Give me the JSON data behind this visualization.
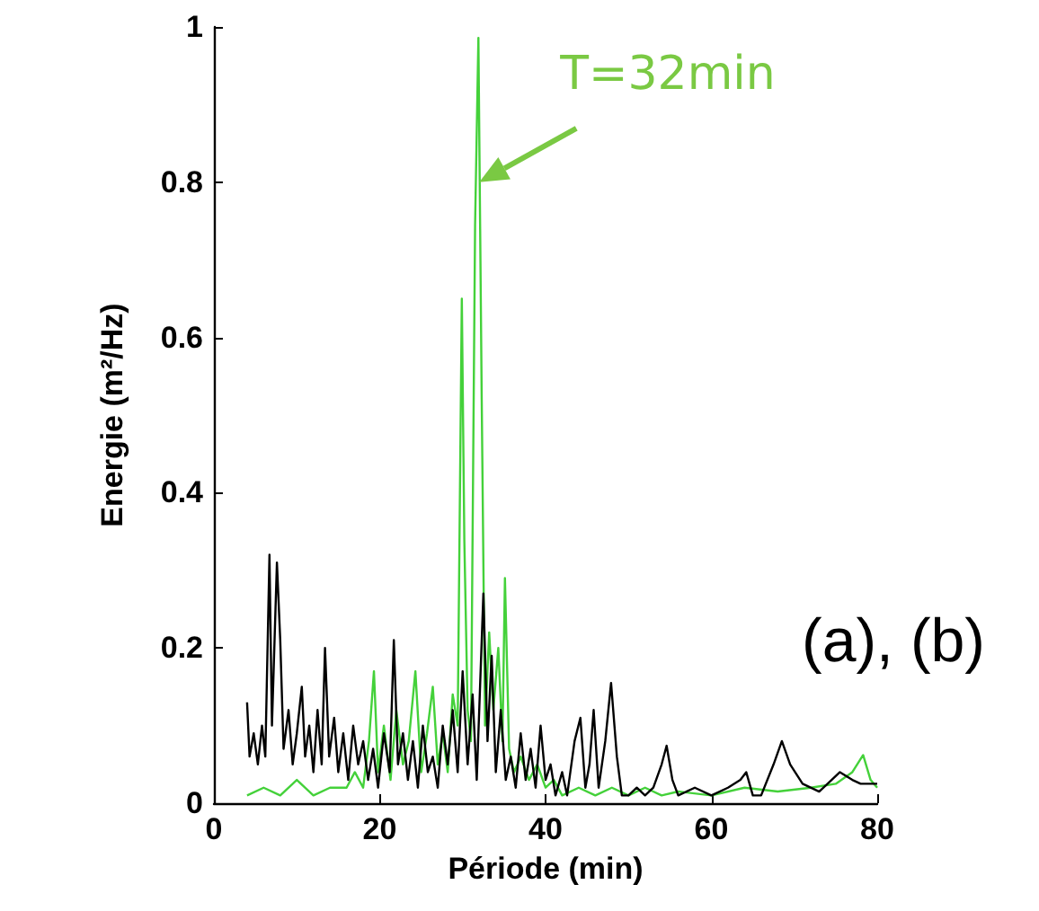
{
  "chart_data": {
    "type": "line",
    "xlabel": "Période (min)",
    "ylabel": "Energie (m²/Hz)",
    "xlim": [
      0,
      80
    ],
    "xticks": [
      0,
      20,
      40,
      60,
      80
    ],
    "ylim": [
      0,
      1
    ],
    "yticks": [
      0,
      0.2,
      0.4,
      0.6,
      0.8,
      1
    ],
    "grid": false,
    "marker": "none",
    "line_style": "solid",
    "annotations": [
      {
        "text": "T=32min",
        "x": 32,
        "y": 0.8
      },
      "(a), (b)"
    ],
    "series": [
      {
        "color": "#44d13a",
        "x": [
          4,
          6,
          8,
          10,
          12,
          14,
          16,
          17,
          18,
          18.7,
          19.3,
          19.8,
          20.5,
          21.3,
          22,
          22.8,
          23.5,
          24.3,
          25,
          25.7,
          26.4,
          27,
          27.6,
          28.2,
          28.8,
          29.4,
          29.9,
          30.2,
          30.6,
          31,
          31.5,
          31.9,
          32.3,
          32.7,
          33.2,
          33.7,
          34.3,
          34.8,
          35.1,
          35.6,
          36.2,
          37,
          38,
          39,
          40,
          41,
          42,
          44,
          46,
          48,
          50,
          52,
          54,
          56,
          60,
          64,
          68,
          72,
          75,
          77,
          78.3,
          79.2,
          80
        ],
        "values": [
          0.01,
          0.02,
          0.01,
          0.03,
          0.01,
          0.02,
          0.02,
          0.04,
          0.02,
          0.08,
          0.17,
          0.04,
          0.1,
          0.03,
          0.12,
          0.05,
          0.08,
          0.17,
          0.04,
          0.09,
          0.15,
          0.05,
          0.09,
          0.04,
          0.14,
          0.1,
          0.65,
          0.34,
          0.12,
          0.08,
          0.745,
          0.986,
          0.52,
          0.1,
          0.22,
          0.12,
          0.2,
          0.08,
          0.29,
          0.07,
          0.04,
          0.06,
          0.03,
          0.05,
          0.02,
          0.03,
          0.01,
          0.02,
          0.01,
          0.02,
          0.01,
          0.02,
          0.01,
          0.015,
          0.01,
          0.02,
          0.015,
          0.02,
          0.025,
          0.04,
          0.062,
          0.03,
          0.02
        ]
      },
      {
        "color": "#000000",
        "x": [
          4,
          4.3,
          4.8,
          5.3,
          5.8,
          6.2,
          6.7,
          7,
          7.6,
          8,
          8.4,
          9,
          9.5,
          10,
          10.6,
          11,
          11.5,
          12,
          12.5,
          13,
          13.4,
          13.9,
          14.5,
          15,
          15.6,
          16.2,
          16.8,
          17.4,
          18,
          18.6,
          19.2,
          19.8,
          20.5,
          21.2,
          21.7,
          22.2,
          22.8,
          23.4,
          24,
          24.6,
          25.2,
          25.8,
          26.4,
          27,
          27.6,
          28.2,
          28.8,
          29.4,
          30,
          30.6,
          31.2,
          31.7,
          32.5,
          33,
          33.5,
          34,
          34.6,
          35.2,
          35.8,
          36.4,
          37,
          37.6,
          38.2,
          38.8,
          39.4,
          40,
          40.6,
          41.2,
          42,
          42.6,
          43.5,
          44.2,
          44.8,
          45.3,
          45.8,
          46.4,
          47.2,
          47.9,
          48.6,
          49.2,
          50,
          51,
          52,
          53,
          54,
          54.6,
          55.3,
          56,
          58,
          60,
          62,
          63.5,
          64.2,
          65,
          66,
          67.5,
          68.5,
          69.5,
          71,
          73,
          74.5,
          75.5,
          77,
          78,
          80
        ],
        "values": [
          0.13,
          0.06,
          0.09,
          0.05,
          0.1,
          0.06,
          0.32,
          0.1,
          0.31,
          0.21,
          0.07,
          0.12,
          0.05,
          0.09,
          0.15,
          0.06,
          0.1,
          0.04,
          0.12,
          0.05,
          0.2,
          0.06,
          0.11,
          0.04,
          0.09,
          0.03,
          0.1,
          0.05,
          0.08,
          0.03,
          0.07,
          0.02,
          0.09,
          0.04,
          0.21,
          0.05,
          0.09,
          0.03,
          0.08,
          0.02,
          0.1,
          0.04,
          0.06,
          0.02,
          0.1,
          0.05,
          0.12,
          0.04,
          0.17,
          0.05,
          0.14,
          0.03,
          0.27,
          0.08,
          0.19,
          0.04,
          0.12,
          0.03,
          0.06,
          0.02,
          0.09,
          0.03,
          0.07,
          0.02,
          0.1,
          0.03,
          0.05,
          0.01,
          0.04,
          0.01,
          0.08,
          0.11,
          0.02,
          0.05,
          0.12,
          0.02,
          0.08,
          0.155,
          0.06,
          0.01,
          0.01,
          0.02,
          0.01,
          0.02,
          0.05,
          0.074,
          0.03,
          0.01,
          0.02,
          0.01,
          0.02,
          0.03,
          0.04,
          0.01,
          0.01,
          0.05,
          0.08,
          0.05,
          0.025,
          0.015,
          0.03,
          0.04,
          0.03,
          0.025,
          0.025
        ]
      }
    ]
  }
}
